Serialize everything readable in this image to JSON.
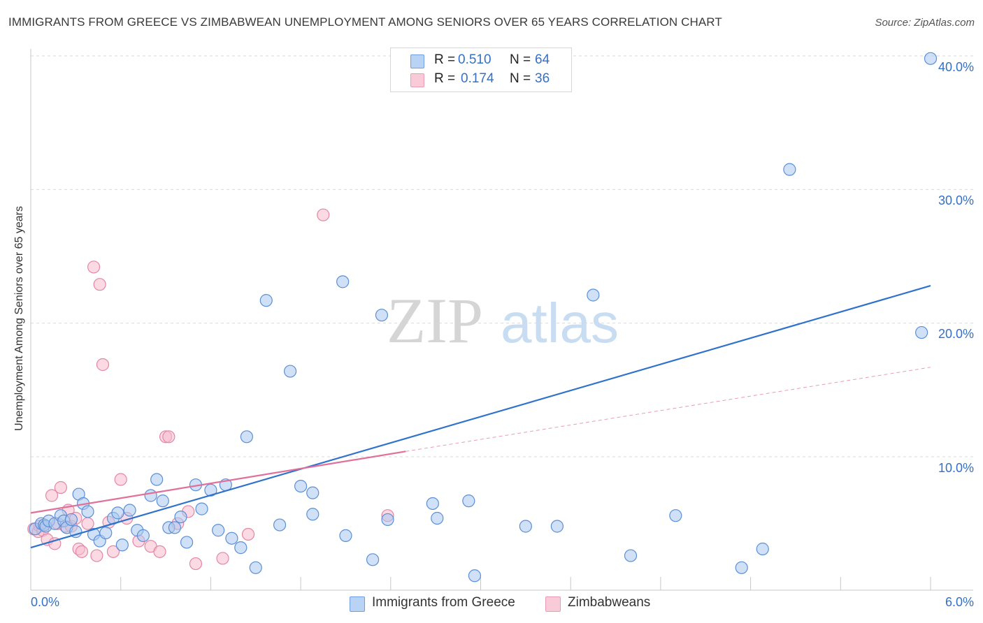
{
  "title": "IMMIGRANTS FROM GREECE VS ZIMBABWEAN UNEMPLOYMENT AMONG SENIORS OVER 65 YEARS CORRELATION CHART",
  "source": "Source: ZipAtlas.com",
  "watermark": {
    "zip": "ZIP",
    "atlas": "atlas"
  },
  "legend_top": {
    "rows": [
      {
        "r_label": "R =",
        "r_value": "0.510",
        "n_label": "N =",
        "n_value": "64"
      },
      {
        "r_label": "R =",
        "r_value": "0.174",
        "n_label": "N =",
        "n_value": "36"
      }
    ]
  },
  "legend_bottom": {
    "items": [
      {
        "label": "Immigrants from Greece"
      },
      {
        "label": "Zimbabweans"
      }
    ]
  },
  "axis_labels": {
    "y": "Unemployment Among Seniors over 65 years",
    "x_left": "0.0%",
    "x_right": "6.0%",
    "y_ticks": [
      "40.0%",
      "30.0%",
      "20.0%",
      "10.0%"
    ]
  },
  "colors": {
    "series1_fill": "#aac8f0",
    "series1_stroke": "#5b8fd6",
    "series1_line": "#2f72cc",
    "series2_fill": "#f7bccd",
    "series2_stroke": "#e387a6",
    "series2_line": "#e0709a",
    "tick_label": "#3470c6",
    "grid": "#d9d9d9"
  },
  "chart_data": {
    "type": "scatter",
    "title": "IMMIGRANTS FROM GREECE VS ZIMBABWEAN UNEMPLOYMENT AMONG SENIORS OVER 65 YEARS CORRELATION CHART",
    "xlabel": "",
    "ylabel": "Unemployment Among Seniors over 65 years",
    "xlim": [
      0,
      6
    ],
    "ylim": [
      0,
      41
    ],
    "y_gridlines": [
      10,
      20,
      30,
      40
    ],
    "series": [
      {
        "name": "Immigrants from Greece",
        "R": 0.51,
        "N": 64,
        "trend": {
          "x0": 0,
          "y0": 3.2,
          "x1": 6,
          "y1": 22.8
        },
        "points": [
          [
            0.03,
            4.6
          ],
          [
            0.07,
            5.0
          ],
          [
            0.09,
            4.9
          ],
          [
            0.1,
            4.8
          ],
          [
            0.12,
            5.2
          ],
          [
            0.16,
            5.0
          ],
          [
            0.2,
            5.6
          ],
          [
            0.22,
            5.2
          ],
          [
            0.24,
            4.7
          ],
          [
            0.27,
            5.3
          ],
          [
            0.3,
            4.4
          ],
          [
            0.32,
            7.2
          ],
          [
            0.35,
            6.5
          ],
          [
            0.38,
            5.9
          ],
          [
            0.42,
            4.2
          ],
          [
            0.46,
            3.7
          ],
          [
            0.5,
            4.3
          ],
          [
            0.55,
            5.4
          ],
          [
            0.58,
            5.8
          ],
          [
            0.61,
            3.4
          ],
          [
            0.66,
            6.0
          ],
          [
            0.71,
            4.5
          ],
          [
            0.75,
            4.1
          ],
          [
            0.8,
            7.1
          ],
          [
            0.84,
            8.3
          ],
          [
            0.88,
            6.7
          ],
          [
            0.92,
            4.7
          ],
          [
            0.96,
            4.7
          ],
          [
            1.0,
            5.5
          ],
          [
            1.04,
            3.6
          ],
          [
            1.1,
            7.9
          ],
          [
            1.14,
            6.1
          ],
          [
            1.2,
            7.5
          ],
          [
            1.25,
            4.5
          ],
          [
            1.3,
            7.9
          ],
          [
            1.34,
            3.9
          ],
          [
            1.4,
            3.2
          ],
          [
            1.44,
            11.5
          ],
          [
            1.5,
            1.7
          ],
          [
            1.57,
            21.7
          ],
          [
            1.66,
            4.9
          ],
          [
            1.73,
            16.4
          ],
          [
            1.8,
            7.8
          ],
          [
            1.88,
            7.3
          ],
          [
            1.88,
            5.7
          ],
          [
            2.08,
            23.1
          ],
          [
            2.1,
            4.1
          ],
          [
            2.28,
            2.3
          ],
          [
            2.34,
            20.6
          ],
          [
            2.38,
            5.3
          ],
          [
            2.68,
            6.5
          ],
          [
            2.71,
            5.4
          ],
          [
            2.92,
            6.7
          ],
          [
            2.96,
            1.1
          ],
          [
            3.3,
            4.8
          ],
          [
            3.51,
            4.8
          ],
          [
            3.75,
            22.1
          ],
          [
            4.0,
            2.6
          ],
          [
            4.3,
            5.6
          ],
          [
            4.74,
            1.7
          ],
          [
            4.88,
            3.1
          ],
          [
            5.06,
            31.5
          ],
          [
            5.94,
            19.3
          ],
          [
            6.0,
            39.8
          ]
        ]
      },
      {
        "name": "Zimbabweans",
        "R": 0.174,
        "N": 36,
        "trend": {
          "x0": 0,
          "y0": 5.8,
          "x1": 2.5,
          "y1": 10.4
        },
        "trend_extension": {
          "x0": 2.5,
          "y0": 10.4,
          "x1": 6,
          "y1": 16.7
        },
        "points": [
          [
            0.02,
            4.6
          ],
          [
            0.05,
            4.4
          ],
          [
            0.06,
            4.8
          ],
          [
            0.08,
            4.5
          ],
          [
            0.11,
            3.8
          ],
          [
            0.14,
            7.1
          ],
          [
            0.16,
            3.5
          ],
          [
            0.18,
            5.0
          ],
          [
            0.2,
            7.7
          ],
          [
            0.23,
            4.8
          ],
          [
            0.25,
            6.0
          ],
          [
            0.27,
            4.8
          ],
          [
            0.3,
            5.4
          ],
          [
            0.32,
            3.1
          ],
          [
            0.34,
            2.9
          ],
          [
            0.38,
            5.0
          ],
          [
            0.42,
            24.2
          ],
          [
            0.44,
            2.6
          ],
          [
            0.46,
            22.9
          ],
          [
            0.48,
            16.9
          ],
          [
            0.52,
            5.1
          ],
          [
            0.55,
            2.9
          ],
          [
            0.6,
            8.3
          ],
          [
            0.64,
            5.4
          ],
          [
            0.72,
            3.7
          ],
          [
            0.8,
            3.3
          ],
          [
            0.86,
            2.9
          ],
          [
            0.9,
            11.5
          ],
          [
            0.92,
            11.5
          ],
          [
            0.98,
            5.0
          ],
          [
            1.05,
            5.9
          ],
          [
            1.1,
            2.0
          ],
          [
            1.28,
            2.4
          ],
          [
            1.45,
            4.2
          ],
          [
            1.95,
            28.1
          ],
          [
            2.38,
            5.6
          ]
        ]
      }
    ]
  }
}
